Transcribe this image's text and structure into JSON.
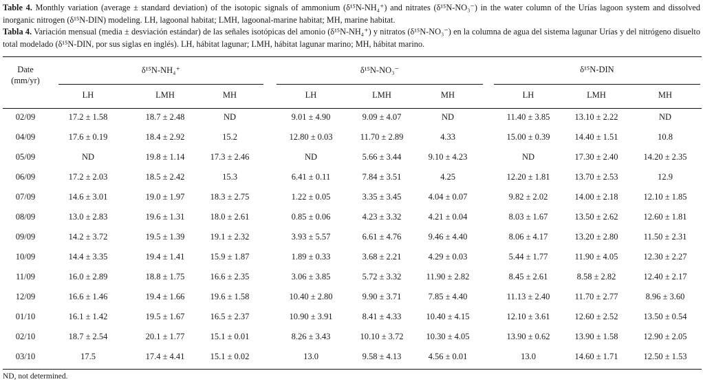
{
  "caption": {
    "en_label": "Table 4.",
    "en_text": " Monthly variation (average ± standard deviation) of the isotopic signals of ammonium (δ¹⁵N-NH₄⁺) and nitrates (δ¹⁵N-NO₃⁻) in the water column of the Urías lagoon system and dissolved inorganic nitrogen (δ¹⁵N-DIN) modeling. LH, lagoonal habitat; LMH, lagoonal-marine habitat; MH, marine habitat.",
    "es_label": "Tabla 4.",
    "es_text": " Variación mensual (media ± desviación estándar) de las señales isotópicas del amonio (δ¹⁵N-NH₄⁺) y nitratos (δ¹⁵N-NO₃⁻) en la columna de agua del sistema lagunar Urías y del nitrógeno disuelto total modelado (δ¹⁵N-DIN, por sus siglas en inglés). LH, hábitat lagunar; LMH, hábitat lagunar marino; MH, hábitat marino."
  },
  "table": {
    "date_header_line1": "Date",
    "date_header_line2": "(mm/yr)",
    "groups": [
      "δ¹⁵N-NH₄⁺",
      "δ¹⁵N-NO₃⁻",
      "δ¹⁵N-DIN"
    ],
    "subheaders": [
      "LH",
      "LMH",
      "MH",
      "LH",
      "LMH",
      "MH",
      "LH",
      "LMH",
      "MH"
    ],
    "rows": [
      [
        "02/09",
        "17.2 ± 1.58",
        "18.7 ± 2.48",
        "ND",
        "9.01 ± 4.90",
        "9.09 ± 4.07",
        "ND",
        "11.40 ± 3.85",
        "13.10 ± 2.22",
        "ND"
      ],
      [
        "04/09",
        "17.6 ± 0.19",
        "18.4 ± 2.92",
        "15.2",
        "12.80 ± 0.03",
        "11.70 ± 2.89",
        "4.33",
        "15.00 ± 0.39",
        "14.40 ± 1.51",
        "10.8"
      ],
      [
        "05/09",
        "ND",
        "19.8 ± 1.14",
        "17.3 ± 2.46",
        "ND",
        "5.66 ± 3.44",
        "9.10 ± 4.23",
        "ND",
        "17.30 ± 2.40",
        "14.20 ± 2.35"
      ],
      [
        "06/09",
        "17.2 ± 2.03",
        "18.5 ± 2.42",
        "15.3",
        "6.41 ± 0.11",
        "7.84 ± 3.51",
        "4.25",
        "12.20 ± 1.81",
        "13.70 ± 2.53",
        "12.9"
      ],
      [
        "07/09",
        "14.6 ± 3.01",
        "19.0 ± 1.97",
        "18.3 ± 2.75",
        "1.22 ± 0.05",
        "3.35 ± 3.45",
        "4.04 ± 0.07",
        "9.82 ± 2.02",
        "14.00 ± 2.18",
        "12.10 ± 1.85"
      ],
      [
        "08/09",
        "13.0 ± 2.83",
        "19.6 ± 1.31",
        "18.0 ± 2.61",
        "0.85 ± 0.06",
        "4.23 ± 3.32",
        "4.21 ± 0.04",
        "8.03 ± 1.67",
        "13.50 ± 2.62",
        "12.60 ± 1.81"
      ],
      [
        "09/09",
        "14.2 ± 3.72",
        "19.5 ± 1.39",
        "19.1 ± 2.32",
        "3.93 ± 5.57",
        "6.61 ± 4.76",
        "9.46 ± 4.40",
        "8.06 ± 4.17",
        "13.20 ± 2.80",
        "11.50 ± 2.31"
      ],
      [
        "10/09",
        "14.4 ± 3.35",
        "19.4 ± 1.41",
        "15.9 ± 1.87",
        "1.89 ± 0.33",
        "3.68 ± 2.21",
        "4.29 ± 0.03",
        "5.44 ± 1.77",
        "11.90 ± 4.05",
        "12.30 ± 2.27"
      ],
      [
        "11/09",
        "16.0 ± 2.89",
        "18.8 ± 1.75",
        "16.6 ± 2.35",
        "3.06 ± 3.85",
        "5.72 ± 3.32",
        "11.90 ± 2.82",
        "8.45 ± 2.61",
        "8.58 ± 2.82",
        "12.40 ± 2.17"
      ],
      [
        "12/09",
        "16.6 ± 1.46",
        "19.4 ± 1.66",
        "19.6 ± 1.58",
        "10.40 ± 2.80",
        "9.90 ± 3.71",
        "7.85 ± 4.40",
        "11.13 ± 2.40",
        "11.70 ± 2.77",
        "8.96 ± 3.60"
      ],
      [
        "01/10",
        "16.1 ± 1.42",
        "19.5 ± 1.67",
        "16.5 ± 2.37",
        "10.90 ± 3.91",
        "8.41 ± 4.33",
        "10.40 ± 4.15",
        "12.10 ± 3.61",
        "12.60 ± 2.52",
        "13.50 ± 0.54"
      ],
      [
        "02/10",
        "18.7 ± 2.54",
        "20.1 ± 1.77",
        "15.1 ± 0.01",
        "8.26 ± 3.43",
        "10.10 ± 3.72",
        "10.30 ± 4.05",
        "13.90 ± 0.62",
        "13.90 ± 1.58",
        "12.90 ± 2.05"
      ],
      [
        "03/10",
        "17.5",
        "17.4 ± 4.41",
        "15.1 ± 0.02",
        "13.0",
        "9.58 ± 4.13",
        "4.56 ± 0.01",
        "13.0",
        "14.60 ± 1.71",
        "12.50 ± 1.53"
      ]
    ],
    "footnote": "ND, not determined."
  }
}
